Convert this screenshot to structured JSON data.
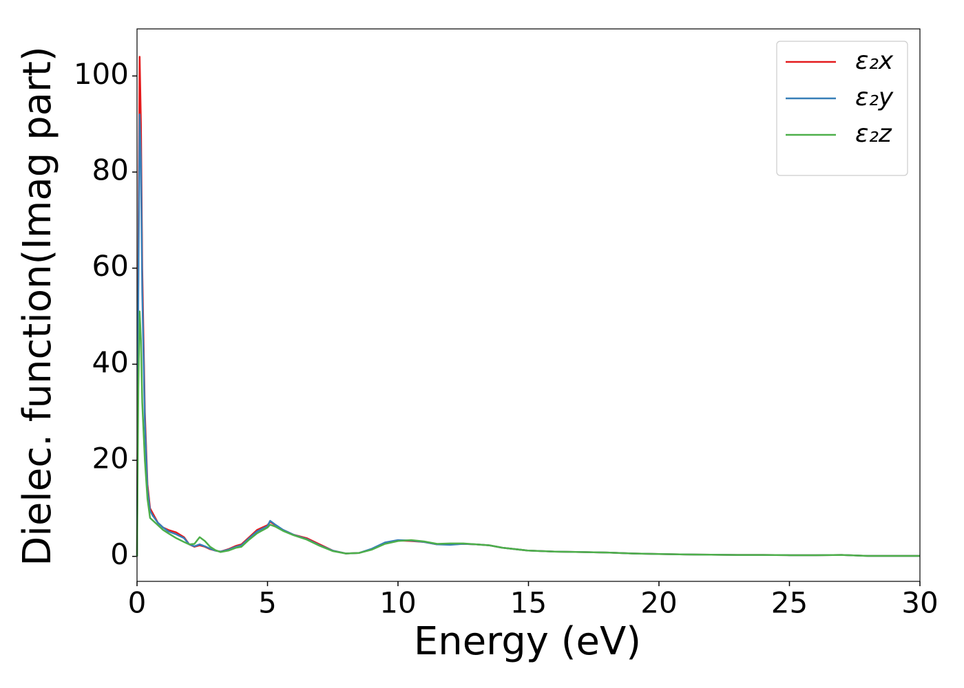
{
  "chart_data": {
    "type": "line",
    "x_label": "Energy (eV)",
    "y_label": "Dielec. function(Imag part)",
    "x": [
      0,
      0.05,
      0.1,
      0.15,
      0.2,
      0.3,
      0.4,
      0.5,
      0.6,
      0.8,
      1.0,
      1.2,
      1.5,
      1.8,
      2.0,
      2.2,
      2.4,
      2.6,
      2.8,
      3.0,
      3.2,
      3.5,
      3.8,
      4.0,
      4.3,
      4.6,
      5.0,
      5.1,
      5.3,
      5.6,
      6.0,
      6.5,
      7.0,
      7.5,
      8.0,
      8.5,
      9.0,
      9.5,
      10.0,
      10.5,
      11.0,
      11.5,
      12.0,
      12.5,
      13.0,
      13.5,
      14.0,
      15,
      16,
      17,
      18,
      19,
      20,
      21,
      22,
      23,
      24,
      25,
      26,
      27,
      28,
      29,
      30
    ],
    "series": [
      {
        "name": "ε₂x",
        "color": "#e41a1c",
        "values": [
          0,
          60,
          104,
          90,
          60,
          30,
          15,
          10,
          9,
          7,
          6,
          5.5,
          5,
          4,
          2.5,
          2,
          2.3,
          2,
          1.5,
          1.2,
          1.0,
          1.5,
          2.2,
          2.5,
          4,
          5.5,
          6.5,
          7.2,
          6.5,
          5.5,
          4.5,
          3.8,
          2.5,
          1.2,
          0.6,
          0.7,
          1.5,
          2.8,
          3.3,
          3.2,
          3.0,
          2.5,
          2.5,
          2.6,
          2.5,
          2.3,
          1.8,
          1.2,
          1.0,
          0.9,
          0.8,
          0.6,
          0.5,
          0.4,
          0.35,
          0.3,
          0.3,
          0.25,
          0.25,
          0.3,
          0.1,
          0.1,
          0.1
        ]
      },
      {
        "name": "ε₂y",
        "color": "#377eb8",
        "values": [
          0,
          55,
          92,
          82,
          55,
          28,
          14,
          9.5,
          8.5,
          7,
          6,
          5.2,
          4.6,
          3.8,
          2.5,
          2.1,
          2.5,
          2.1,
          1.6,
          1.2,
          1.0,
          1.4,
          2.0,
          2.3,
          3.8,
          5.2,
          6.3,
          7.4,
          6.6,
          5.5,
          4.5,
          3.6,
          2.3,
          1.2,
          0.6,
          0.7,
          1.6,
          2.9,
          3.4,
          3.3,
          3.0,
          2.5,
          2.4,
          2.6,
          2.5,
          2.3,
          1.8,
          1.2,
          1.0,
          0.9,
          0.8,
          0.6,
          0.5,
          0.4,
          0.35,
          0.3,
          0.3,
          0.25,
          0.25,
          0.3,
          0.1,
          0.1,
          0.1
        ]
      },
      {
        "name": "ε₂z",
        "color": "#4daf4a",
        "values": [
          0,
          35,
          51,
          45,
          32,
          20,
          12,
          8,
          7.5,
          6.5,
          5.5,
          4.8,
          3.8,
          3.0,
          2.5,
          2.6,
          4,
          3.2,
          2,
          1.3,
          0.9,
          1.2,
          1.8,
          2.0,
          3.5,
          4.8,
          6.0,
          6.6,
          6.2,
          5.3,
          4.4,
          3.5,
          2.2,
          1.1,
          0.6,
          0.7,
          1.4,
          2.6,
          3.2,
          3.4,
          3.1,
          2.6,
          2.7,
          2.7,
          2.5,
          2.3,
          1.8,
          1.2,
          1.0,
          0.9,
          0.8,
          0.6,
          0.5,
          0.4,
          0.35,
          0.3,
          0.3,
          0.25,
          0.25,
          0.3,
          0.1,
          0.1,
          0.1
        ]
      }
    ],
    "xlim": [
      0,
      30
    ],
    "xticks": [
      0,
      5,
      10,
      15,
      20,
      25,
      30
    ],
    "ylim": [
      -5.2,
      109.8
    ],
    "yticks": [
      0,
      20,
      40,
      60,
      80,
      100
    ],
    "grid": false,
    "legend": "upper right"
  }
}
